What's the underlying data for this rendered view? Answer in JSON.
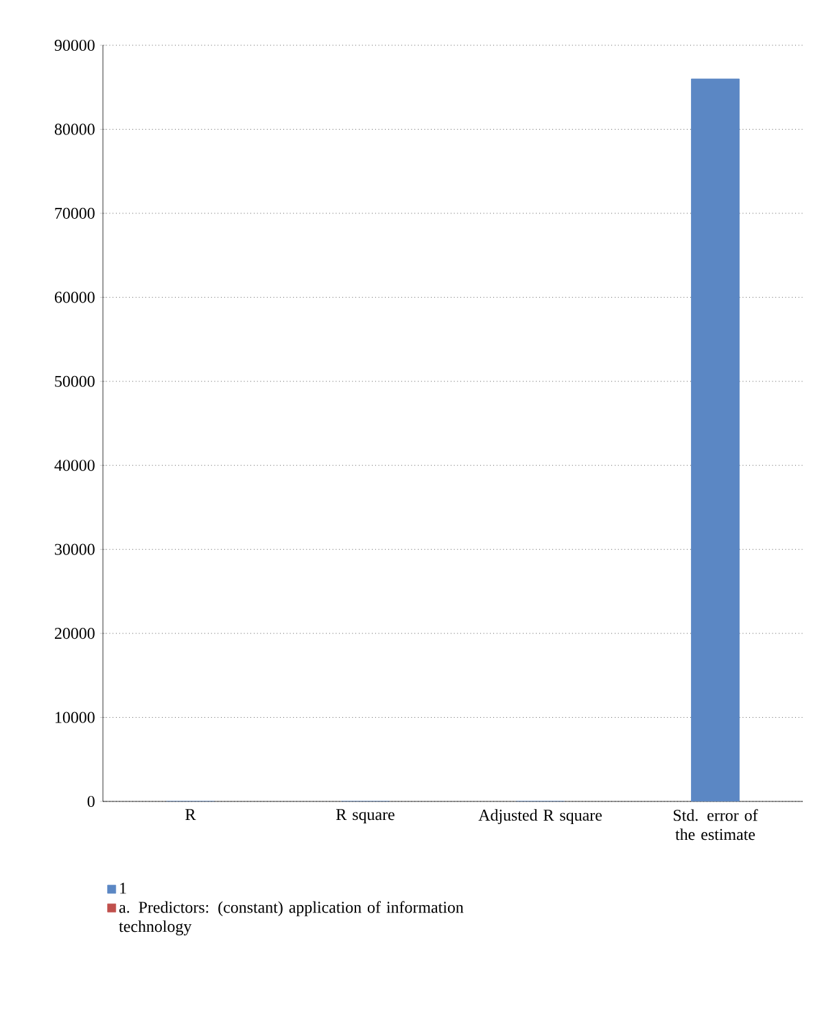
{
  "chart_data": {
    "type": "bar",
    "categories": [
      "R",
      "R square",
      "Adjusted R square",
      "Std. error of the estimate"
    ],
    "series": [
      {
        "name": "1",
        "color": "#5b87c4",
        "values": [
          0,
          0,
          0,
          86000
        ]
      },
      {
        "name": "a. Predictors: (constant) application of information technology",
        "color": "#c0504d",
        "values": [
          null,
          null,
          null,
          null
        ]
      }
    ],
    "ylim": [
      0,
      90000
    ],
    "yticks": [
      0,
      10000,
      20000,
      30000,
      40000,
      50000,
      60000,
      70000,
      80000,
      90000
    ],
    "grid": "y",
    "legend": "bottom"
  }
}
